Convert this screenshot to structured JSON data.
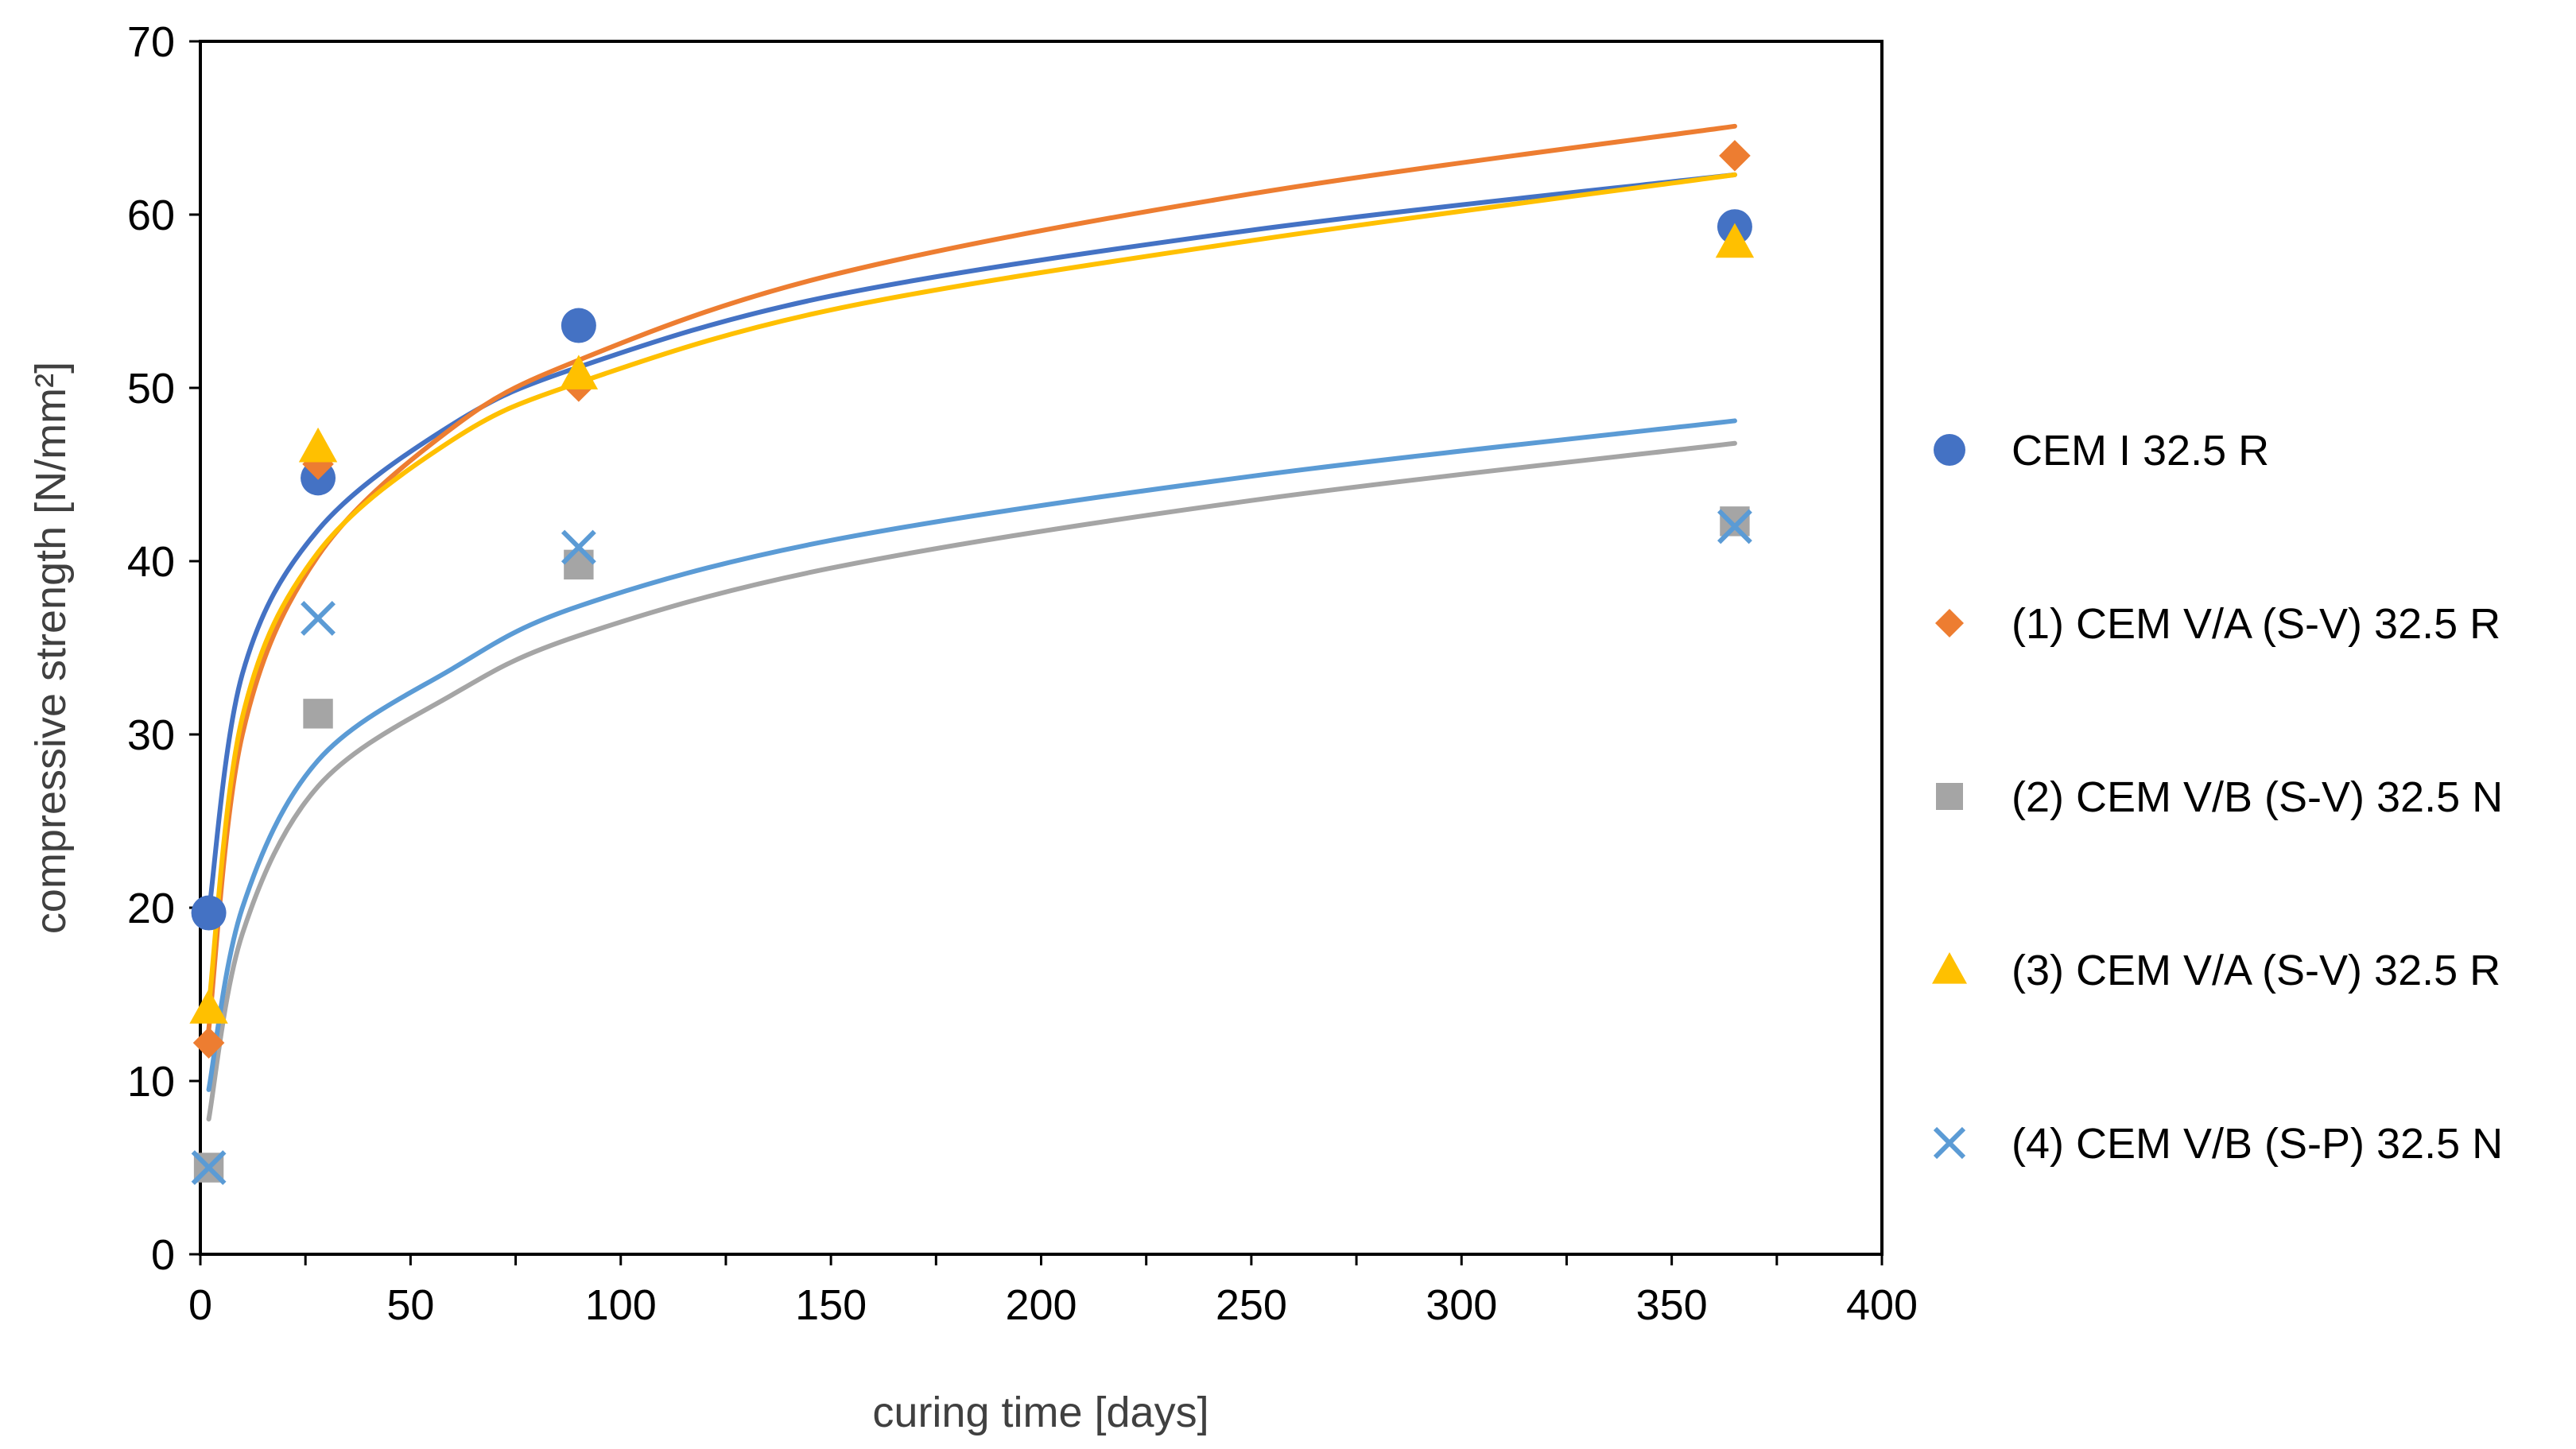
{
  "chart_data": {
    "type": "scatter",
    "title": "",
    "xlabel": "curing time [days]",
    "ylabel": "compressive strength [N/mm²]",
    "xlim": [
      0,
      400
    ],
    "ylim": [
      0,
      70
    ],
    "xticks": [
      0,
      50,
      100,
      150,
      200,
      250,
      300,
      350,
      400
    ],
    "yticks": [
      0,
      10,
      20,
      30,
      40,
      50,
      60,
      70
    ],
    "grid": false,
    "legend_position": "right",
    "trendline": "logarithmic",
    "series": [
      {
        "name": "CEM I 32.5 R",
        "marker": "circle",
        "color": "#4472C4",
        "points": [
          [
            2,
            19.7
          ],
          [
            28,
            44.8
          ],
          [
            90,
            53.6
          ],
          [
            365,
            59.3
          ]
        ],
        "trend": [
          [
            2,
            19.7
          ],
          [
            10,
            33.5
          ],
          [
            28,
            41.8
          ],
          [
            60,
            47.9
          ],
          [
            90,
            51.2
          ],
          [
            150,
            55.3
          ],
          [
            250,
            59.1
          ],
          [
            365,
            62.3
          ]
        ]
      },
      {
        "name": "(1) CEM V/A (S-V) 32.5 R",
        "marker": "diamond",
        "color": "#ED7D31",
        "points": [
          [
            2,
            12.2
          ],
          [
            28,
            45.6
          ],
          [
            90,
            50.1
          ],
          [
            365,
            63.4
          ]
        ],
        "trend": [
          [
            2,
            13.0
          ],
          [
            10,
            30.0
          ],
          [
            28,
            40.3
          ],
          [
            60,
            47.7
          ],
          [
            90,
            51.6
          ],
          [
            150,
            56.5
          ],
          [
            250,
            61.2
          ],
          [
            365,
            65.1
          ]
        ]
      },
      {
        "name": "(2) CEM V/B (S-V) 32.5 N",
        "marker": "square",
        "color": "#A5A5A5",
        "points": [
          [
            2,
            5.0
          ],
          [
            28,
            31.2
          ],
          [
            90,
            39.8
          ],
          [
            365,
            42.3
          ]
        ],
        "trend": [
          [
            2,
            7.8
          ],
          [
            10,
            18.5
          ],
          [
            28,
            27.0
          ],
          [
            60,
            32.3
          ],
          [
            90,
            35.7
          ],
          [
            150,
            39.6
          ],
          [
            250,
            43.5
          ],
          [
            365,
            46.8
          ]
        ]
      },
      {
        "name": "(3) CEM V/A (S-V) 32.5 R",
        "marker": "triangle",
        "color": "#FFC000",
        "points": [
          [
            2,
            14.2
          ],
          [
            28,
            46.6
          ],
          [
            90,
            50.8
          ],
          [
            365,
            58.4
          ]
        ],
        "trend": [
          [
            2,
            14.3
          ],
          [
            10,
            31.0
          ],
          [
            28,
            40.5
          ],
          [
            60,
            47.0
          ],
          [
            90,
            50.3
          ],
          [
            150,
            54.5
          ],
          [
            250,
            58.5
          ],
          [
            365,
            62.3
          ]
        ]
      },
      {
        "name": "(4) CEM V/B (S-P) 32.5 N",
        "marker": "x",
        "color": "#5B9BD5",
        "points": [
          [
            2,
            5.0
          ],
          [
            28,
            36.7
          ],
          [
            90,
            40.8
          ],
          [
            365,
            42.0
          ]
        ],
        "trend": [
          [
            2,
            9.5
          ],
          [
            10,
            20.0
          ],
          [
            28,
            28.5
          ],
          [
            60,
            33.8
          ],
          [
            90,
            37.4
          ],
          [
            150,
            41.2
          ],
          [
            250,
            44.9
          ],
          [
            365,
            48.1
          ]
        ]
      }
    ]
  }
}
